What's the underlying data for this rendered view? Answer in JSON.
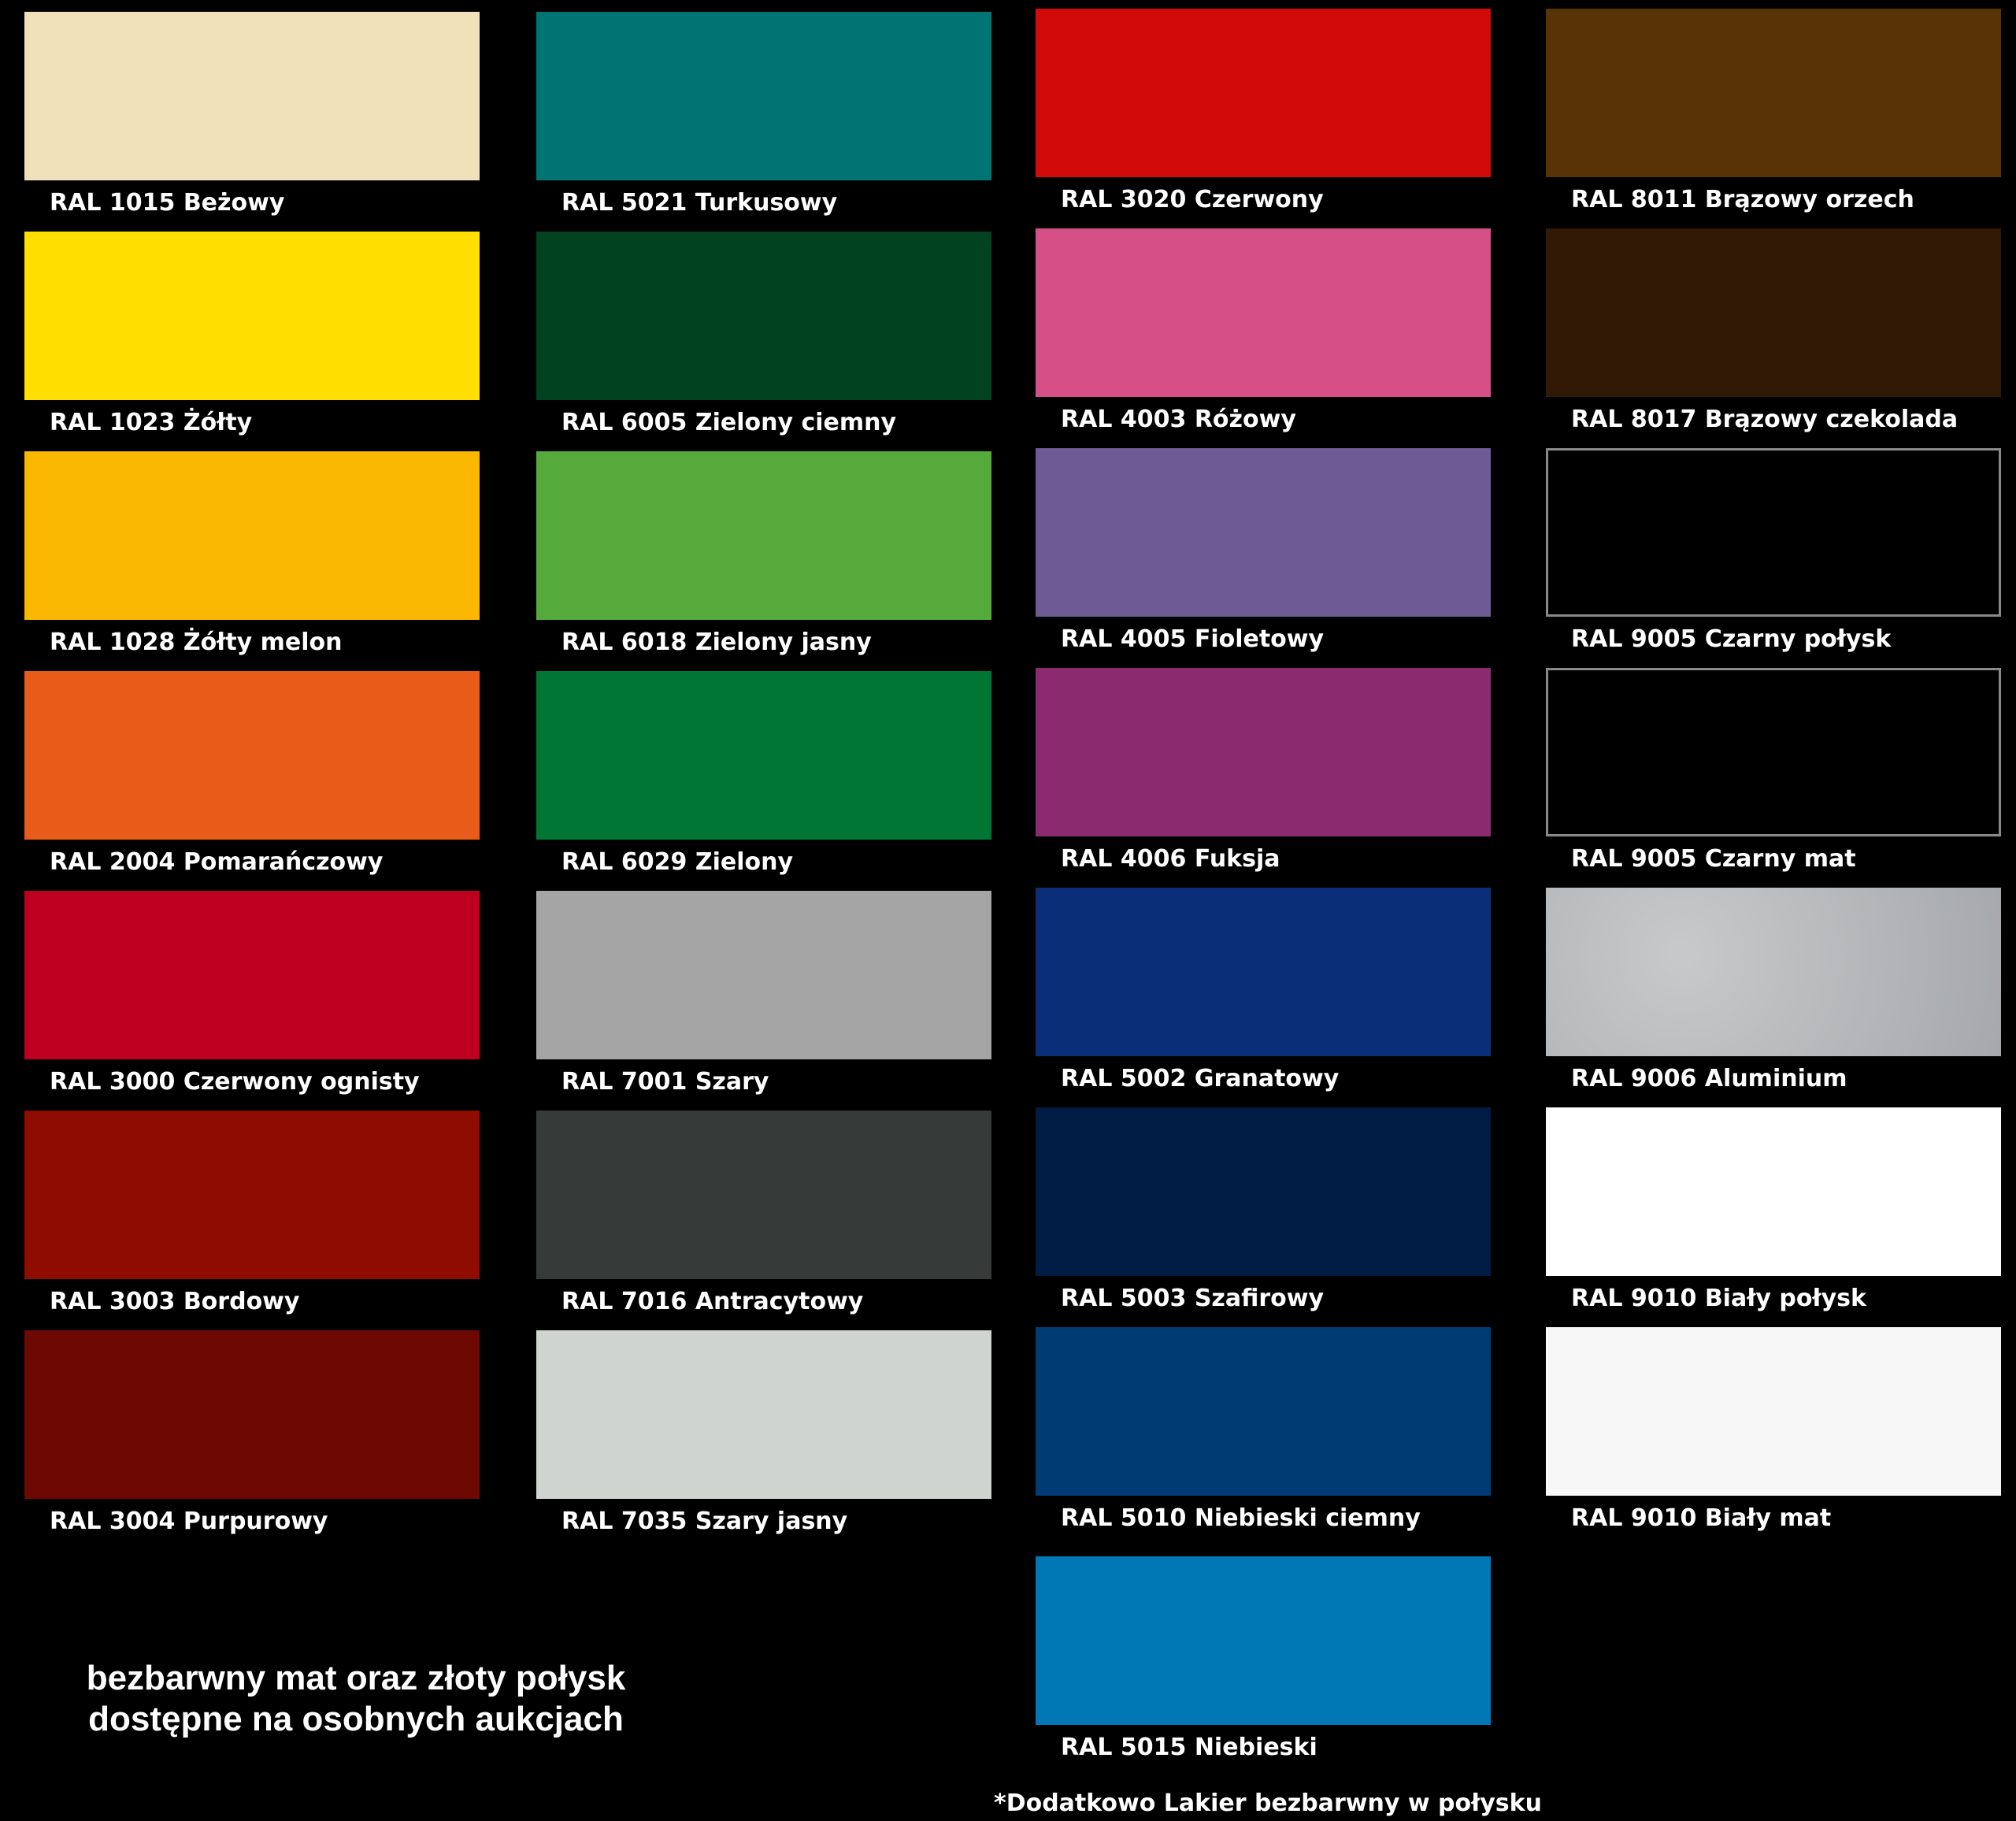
{
  "columns": [
    [
      {
        "label": "RAL 1015 Beżowy",
        "color": "#f1e1bb"
      },
      {
        "label": "RAL 1023 Żółty",
        "color": "#ffde00"
      },
      {
        "label": "RAL 1028 Żółty melon",
        "color": "#fbb800"
      },
      {
        "label": "RAL 2004 Pomarańczowy",
        "color": "#e95b19"
      },
      {
        "label": "RAL 3000 Czerwony ognisty",
        "color": "#be0020"
      },
      {
        "label": "RAL 3003 Bordowy",
        "color": "#8f0c00"
      },
      {
        "label": "RAL 3004 Purpurowy",
        "color": "#6d0803"
      }
    ],
    [
      {
        "label": "RAL 5021 Turkusowy",
        "color": "#007472"
      },
      {
        "label": "RAL 6005 Zielony ciemny",
        "color": "#014321"
      },
      {
        "label": "RAL 6018 Zielony jasny",
        "color": "#56aa3b"
      },
      {
        "label": "RAL 6029 Zielony",
        "color": "#007635"
      },
      {
        "label": "RAL 7001 Szary",
        "color": "#a5a5a5"
      },
      {
        "label": "RAL 7016 Antracytowy",
        "color": "#363b3a"
      },
      {
        "label": "RAL 7035 Szary jasny",
        "color": "#d0d4d0"
      }
    ],
    [
      {
        "label": "RAL 3020 Czerwony",
        "color": "#d20a0a"
      },
      {
        "label": "RAL 4003 Różowy",
        "color": "#d64f87"
      },
      {
        "label": "RAL 4005 Fioletowy",
        "color": "#6e5a94"
      },
      {
        "label": "RAL 4006 Fuksja",
        "color": "#8b2a6e"
      },
      {
        "label": "RAL 5002 Granatowy",
        "color": "#0a2e77"
      },
      {
        "label": "RAL 5003 Szafirowy",
        "color": "#001c45"
      },
      {
        "label": "RAL 5010 Niebieski ciemny",
        "color": "#003b74"
      },
      {
        "label": "RAL 5015 Niebieski",
        "color": "#0078b6"
      }
    ],
    [
      {
        "label": "RAL 8011 Brązowy orzech",
        "color": "#583305"
      },
      {
        "label": "RAL 8017 Brązowy czekolada",
        "color": "#311905"
      },
      {
        "label": "RAL 9005 Czarny połysk",
        "color": "#000000",
        "border": "#8a8a8a"
      },
      {
        "label": "RAL 9005 Czarny mat",
        "color": "#000000",
        "border": "#8a8a8a"
      },
      {
        "label": "RAL 9006 Aluminium",
        "color": "#b4b7b9"
      },
      {
        "label": "RAL 9010 Biały połysk",
        "color": "#ffffff"
      },
      {
        "label": "RAL 9010 Biały mat",
        "color": "#f7f7f7"
      }
    ]
  ],
  "note_lines": [
    "bezbarwny mat oraz złoty połysk",
    "dostępne na osobnych aukcjach"
  ],
  "footnote": "*Dodatkowo Lakier bezbarwny w połysku"
}
